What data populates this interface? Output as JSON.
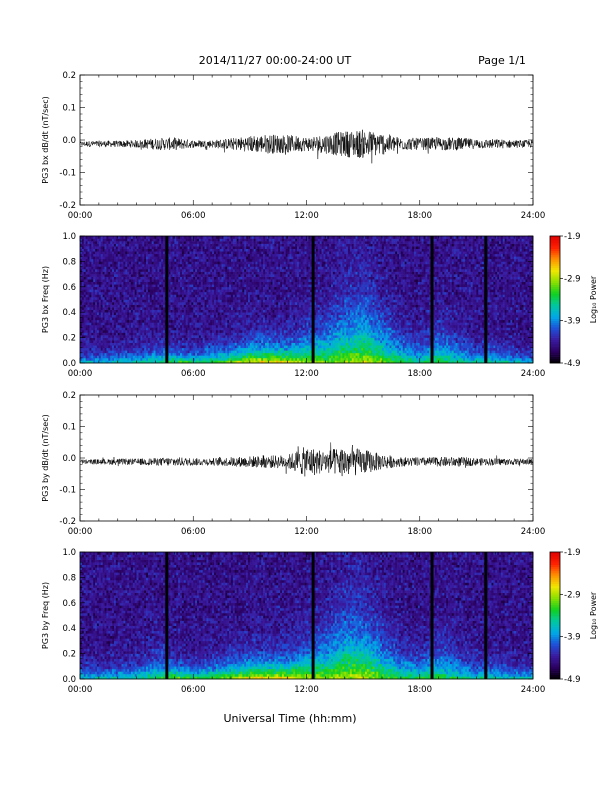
{
  "header": {
    "title": "2014/11/27  00:00-24:00 UT",
    "page": "Page 1/1"
  },
  "figure": {
    "xlabel": "Universal Time (hh:mm)",
    "time_tick_labels": [
      "00:00",
      "06:00",
      "12:00",
      "18:00",
      "24:00"
    ]
  },
  "colorbar": {
    "label": "Log₁₀ Power",
    "tick_labels": [
      "-1.9",
      "-2.9",
      "-3.9",
      "-4.9"
    ],
    "range": [
      -4.9,
      -1.9
    ],
    "colormap": [
      "#000000",
      "#2a0060",
      "#3a1aa0",
      "#1e50d8",
      "#00a8e8",
      "#00c8a0",
      "#10d020",
      "#88e000",
      "#f0e800",
      "#ff9000",
      "#ff2000",
      "#e00000"
    ]
  },
  "chart_data": [
    {
      "type": "line",
      "ylabel": "PG3 bx dB/dt (nT/sec)",
      "xlim": [
        0,
        24
      ],
      "ylim": [
        -0.2,
        0.2
      ],
      "y_tick_labels": [
        "0.2",
        "0.1",
        "0.0",
        "-0.1",
        "-0.2"
      ],
      "grid": false,
      "series": [
        {
          "x": [
            0,
            1,
            2,
            3,
            4,
            5,
            6,
            7,
            8,
            9,
            10,
            11,
            12,
            13,
            14,
            15,
            16,
            17,
            18,
            19,
            20,
            21,
            22,
            23,
            24
          ],
          "baseline": [
            -0.012,
            -0.012,
            -0.012,
            -0.012,
            -0.012,
            -0.012,
            -0.012,
            -0.012,
            -0.012,
            -0.012,
            -0.012,
            -0.012,
            -0.012,
            -0.012,
            -0.012,
            -0.012,
            -0.012,
            -0.012,
            -0.012,
            -0.012,
            -0.012,
            -0.012,
            -0.012,
            -0.012,
            -0.012
          ],
          "amplitude": [
            0.008,
            0.01,
            0.01,
            0.012,
            0.018,
            0.02,
            0.012,
            0.012,
            0.018,
            0.025,
            0.03,
            0.028,
            0.022,
            0.03,
            0.04,
            0.045,
            0.035,
            0.02,
            0.018,
            0.02,
            0.02,
            0.015,
            0.015,
            0.012,
            0.012
          ]
        }
      ]
    },
    {
      "type": "heatmap",
      "ylabel": "PG3 bx Freq (Hz)",
      "xlim": [
        0,
        24
      ],
      "ylim": [
        0.0,
        1.0
      ],
      "y_tick_labels": [
        "1.0",
        "0.8",
        "0.6",
        "0.4",
        "0.2",
        "0.0"
      ],
      "value_label": "Log₁₀ Power",
      "value_range": [
        -4.9,
        -1.9
      ],
      "x": [
        0,
        1,
        2,
        3,
        4,
        5,
        6,
        7,
        8,
        9,
        10,
        11,
        12,
        13,
        14,
        15,
        16,
        17,
        18,
        19,
        20,
        21,
        22,
        23,
        24
      ],
      "near_dc_power": [
        -3.7,
        -3.6,
        -3.6,
        -3.5,
        -3.4,
        -3.1,
        -3.3,
        -3.2,
        -2.9,
        -2.7,
        -2.6,
        -2.6,
        -3.0,
        -3.1,
        -3.0,
        -2.9,
        -3.1,
        -3.3,
        -3.4,
        -3.3,
        -3.4,
        -3.5,
        -3.5,
        -3.6,
        -3.7
      ],
      "activity_height_hz": [
        0.1,
        0.1,
        0.12,
        0.12,
        0.15,
        0.12,
        0.12,
        0.15,
        0.15,
        0.2,
        0.2,
        0.18,
        0.28,
        0.35,
        0.5,
        0.55,
        0.4,
        0.25,
        0.18,
        0.3,
        0.22,
        0.15,
        0.15,
        0.12,
        0.1
      ],
      "data_gaps_hours": [
        4.6,
        12.35,
        18.65,
        21.5
      ]
    },
    {
      "type": "line",
      "ylabel": "PG3 by dB/dt (nT/sec)",
      "xlim": [
        0,
        24
      ],
      "ylim": [
        -0.2,
        0.2
      ],
      "y_tick_labels": [
        "0.2",
        "0.1",
        "0.0",
        "-0.1",
        "-0.2"
      ],
      "grid": false,
      "series": [
        {
          "x": [
            0,
            1,
            2,
            3,
            4,
            5,
            6,
            7,
            8,
            9,
            10,
            11,
            12,
            13,
            14,
            15,
            16,
            17,
            18,
            19,
            20,
            21,
            22,
            23,
            24
          ],
          "baseline": [
            -0.012,
            -0.012,
            -0.012,
            -0.012,
            -0.012,
            -0.012,
            -0.012,
            -0.012,
            -0.012,
            -0.012,
            -0.012,
            -0.012,
            -0.012,
            -0.012,
            -0.012,
            -0.012,
            -0.012,
            -0.012,
            -0.012,
            -0.012,
            -0.012,
            -0.012,
            -0.012,
            -0.012,
            -0.012
          ],
          "amplitude": [
            0.008,
            0.008,
            0.01,
            0.01,
            0.012,
            0.015,
            0.012,
            0.012,
            0.015,
            0.018,
            0.02,
            0.022,
            0.05,
            0.035,
            0.05,
            0.04,
            0.025,
            0.015,
            0.014,
            0.015,
            0.016,
            0.012,
            0.012,
            0.01,
            0.01
          ]
        }
      ]
    },
    {
      "type": "heatmap",
      "ylabel": "PG3 by Freq (Hz)",
      "xlim": [
        0,
        24
      ],
      "ylim": [
        0.0,
        1.0
      ],
      "y_tick_labels": [
        "1.0",
        "0.8",
        "0.6",
        "0.4",
        "0.2",
        "0.0"
      ],
      "value_label": "Log₁₀ Power",
      "value_range": [
        -4.9,
        -1.9
      ],
      "x": [
        0,
        1,
        2,
        3,
        4,
        5,
        6,
        7,
        8,
        9,
        10,
        11,
        12,
        13,
        14,
        15,
        16,
        17,
        18,
        19,
        20,
        21,
        22,
        23,
        24
      ],
      "near_dc_power": [
        -3.6,
        -3.6,
        -3.5,
        -3.5,
        -3.4,
        -3.0,
        -3.2,
        -3.1,
        -2.9,
        -2.7,
        -2.6,
        -2.6,
        -2.9,
        -3.0,
        -2.9,
        -2.9,
        -3.1,
        -3.3,
        -3.3,
        -3.3,
        -3.4,
        -3.5,
        -3.5,
        -3.6,
        -3.6
      ],
      "activity_height_hz": [
        0.12,
        0.12,
        0.12,
        0.15,
        0.22,
        0.15,
        0.12,
        0.15,
        0.18,
        0.2,
        0.2,
        0.2,
        0.3,
        0.38,
        0.55,
        0.55,
        0.38,
        0.25,
        0.2,
        0.32,
        0.22,
        0.15,
        0.15,
        0.12,
        0.12
      ],
      "data_gaps_hours": [
        4.6,
        12.35,
        18.65,
        21.5
      ]
    }
  ]
}
